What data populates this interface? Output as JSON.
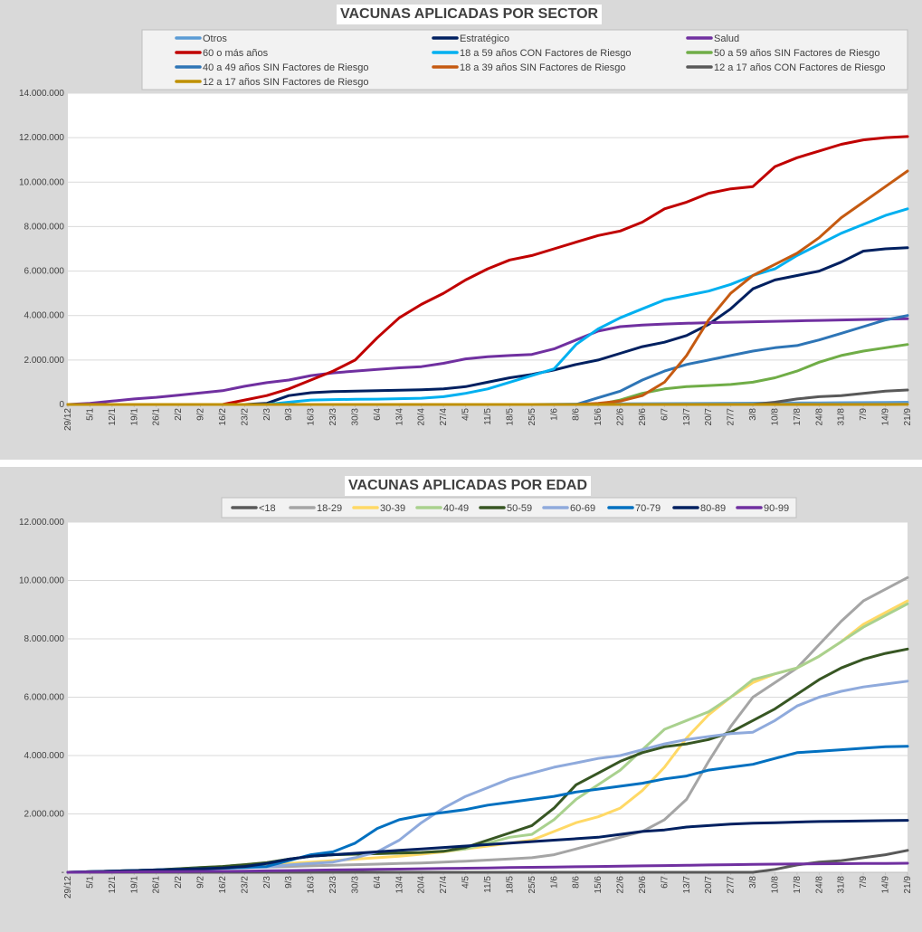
{
  "chart_data": [
    {
      "type": "line",
      "title": "VACUNAS APLICADAS POR SECTOR",
      "ylim": [
        0,
        14000000
      ],
      "y_ticks": [
        0,
        2000000,
        4000000,
        6000000,
        8000000,
        10000000,
        12000000,
        14000000
      ],
      "y_tick_labels": [
        "0",
        "2.000.000",
        "4.000.000",
        "6.000.000",
        "8.000.000",
        "10.000.000",
        "12.000.000",
        "14.000.000"
      ],
      "x_tick_labels": [
        "29/12",
        "5/1",
        "12/1",
        "19/1",
        "26/1",
        "2/2",
        "9/2",
        "16/2",
        "23/2",
        "2/3",
        "9/3",
        "16/3",
        "23/3",
        "30/3",
        "6/4",
        "13/4",
        "20/4",
        "27/4",
        "4/5",
        "11/5",
        "18/5",
        "25/5",
        "1/6",
        "8/6",
        "15/6",
        "22/6",
        "29/6",
        "6/7",
        "13/7",
        "20/7",
        "27/7",
        "3/8",
        "10/8",
        "17/8",
        "24/8",
        "31/8",
        "7/9",
        "14/9",
        "21/9"
      ],
      "legend_position": "top",
      "series": [
        {
          "name": "Otros",
          "color": "#5b9bd5",
          "values": [
            0,
            0,
            0,
            0,
            0,
            0,
            0,
            0,
            0,
            0,
            0,
            0,
            0,
            0,
            0,
            0,
            0,
            0,
            0,
            0,
            0,
            0,
            10000,
            20000,
            25000,
            30000,
            35000,
            40000,
            45000,
            50000,
            55000,
            60000,
            65000,
            70000,
            75000,
            80000,
            85000,
            90000,
            100000
          ]
        },
        {
          "name": "Estratégico",
          "color": "#002060",
          "values": [
            0,
            0,
            0,
            0,
            0,
            0,
            0,
            0,
            0,
            50000,
            400000,
            530000,
            580000,
            600000,
            620000,
            640000,
            660000,
            700000,
            800000,
            1000000,
            1200000,
            1350000,
            1550000,
            1800000,
            2000000,
            2300000,
            2600000,
            2800000,
            3100000,
            3600000,
            4300000,
            5200000,
            5600000,
            5800000,
            6000000,
            6400000,
            6900000,
            7000000,
            7050000
          ]
        },
        {
          "name": "Salud",
          "color": "#7030a0",
          "values": [
            0,
            50000,
            150000,
            250000,
            320000,
            420000,
            520000,
            620000,
            820000,
            980000,
            1100000,
            1300000,
            1420000,
            1500000,
            1580000,
            1650000,
            1700000,
            1850000,
            2050000,
            2150000,
            2200000,
            2250000,
            2500000,
            2900000,
            3300000,
            3500000,
            3570000,
            3620000,
            3650000,
            3680000,
            3700000,
            3720000,
            3740000,
            3760000,
            3780000,
            3800000,
            3820000,
            3840000,
            3860000
          ]
        },
        {
          "name": "60 o más años",
          "color": "#c00000",
          "values": [
            0,
            0,
            0,
            0,
            0,
            0,
            0,
            0,
            200000,
            400000,
            700000,
            1100000,
            1500000,
            2000000,
            3000000,
            3900000,
            4500000,
            5000000,
            5600000,
            6100000,
            6500000,
            6700000,
            7000000,
            7300000,
            7600000,
            7800000,
            8200000,
            8800000,
            9100000,
            9500000,
            9700000,
            9800000,
            10700000,
            11100000,
            11400000,
            11700000,
            11900000,
            12000000,
            12050000
          ]
        },
        {
          "name": "18 a 59 años CON Factores de Riesgo",
          "color": "#00b0f0",
          "values": [
            0,
            0,
            0,
            0,
            0,
            0,
            0,
            0,
            0,
            0,
            100000,
            200000,
            220000,
            230000,
            240000,
            260000,
            280000,
            350000,
            500000,
            700000,
            1000000,
            1300000,
            1600000,
            2700000,
            3400000,
            3900000,
            4300000,
            4700000,
            4900000,
            5100000,
            5400000,
            5800000,
            6100000,
            6700000,
            7200000,
            7700000,
            8100000,
            8500000,
            8800000
          ]
        },
        {
          "name": "50 a 59 años SIN Factores de Riesgo",
          "color": "#70ad47",
          "values": [
            0,
            0,
            0,
            0,
            0,
            0,
            0,
            0,
            0,
            0,
            0,
            0,
            0,
            0,
            0,
            0,
            0,
            0,
            0,
            0,
            0,
            0,
            0,
            0,
            0,
            200000,
            500000,
            700000,
            800000,
            850000,
            900000,
            1000000,
            1200000,
            1500000,
            1900000,
            2200000,
            2400000,
            2550000,
            2700000
          ]
        },
        {
          "name": "40 a 49 años SIN Factores de Riesgo",
          "color": "#2e75b6",
          "values": [
            0,
            0,
            0,
            0,
            0,
            0,
            0,
            0,
            0,
            0,
            0,
            0,
            0,
            0,
            0,
            0,
            0,
            0,
            0,
            0,
            0,
            0,
            0,
            0,
            300000,
            600000,
            1100000,
            1500000,
            1800000,
            2000000,
            2200000,
            2400000,
            2550000,
            2650000,
            2900000,
            3200000,
            3500000,
            3800000,
            4000000
          ]
        },
        {
          "name": "18 a 39 años SIN Factores de Riesgo",
          "color": "#c55a11",
          "values": [
            0,
            0,
            0,
            0,
            0,
            0,
            0,
            0,
            0,
            0,
            0,
            0,
            0,
            0,
            0,
            0,
            0,
            0,
            0,
            0,
            0,
            0,
            0,
            0,
            50000,
            150000,
            400000,
            1000000,
            2200000,
            3800000,
            5000000,
            5800000,
            6300000,
            6800000,
            7500000,
            8400000,
            9100000,
            9800000,
            10500000
          ]
        },
        {
          "name": "12 a 17 años CON Factores de Riesgo",
          "color": "#595959",
          "values": [
            0,
            0,
            0,
            0,
            0,
            0,
            0,
            0,
            0,
            0,
            0,
            0,
            0,
            0,
            0,
            0,
            0,
            0,
            0,
            0,
            0,
            0,
            0,
            0,
            0,
            0,
            0,
            0,
            0,
            0,
            0,
            0,
            100000,
            250000,
            350000,
            400000,
            500000,
            600000,
            650000
          ]
        },
        {
          "name": "12 a 17 años SIN Factores de Riesgo",
          "color": "#bf9000",
          "values": [
            0,
            0,
            0,
            0,
            0,
            0,
            0,
            0,
            0,
            0,
            0,
            0,
            0,
            0,
            0,
            0,
            0,
            0,
            0,
            0,
            0,
            0,
            0,
            0,
            0,
            0,
            0,
            0,
            0,
            0,
            0,
            0,
            0,
            0,
            0,
            0,
            0,
            0,
            5000
          ]
        }
      ]
    },
    {
      "type": "line",
      "title": "VACUNAS APLICADAS POR EDAD",
      "ylim": [
        0,
        12000000
      ],
      "y_ticks": [
        0,
        2000000,
        4000000,
        6000000,
        8000000,
        10000000,
        12000000
      ],
      "y_tick_labels": [
        "-",
        "2.000.000",
        "4.000.000",
        "6.000.000",
        "8.000.000",
        "10.000.000",
        "12.000.000"
      ],
      "x_tick_labels": [
        "29/12",
        "5/1",
        "12/1",
        "19/1",
        "26/1",
        "2/2",
        "9/2",
        "16/2",
        "23/2",
        "2/3",
        "9/3",
        "16/3",
        "23/3",
        "30/3",
        "6/4",
        "13/4",
        "20/4",
        "27/4",
        "4/5",
        "11/5",
        "18/5",
        "25/5",
        "1/6",
        "8/6",
        "15/6",
        "22/6",
        "29/6",
        "6/7",
        "13/7",
        "20/7",
        "27/7",
        "3/8",
        "10/8",
        "17/8",
        "24/8",
        "31/8",
        "7/9",
        "14/9",
        "21/9"
      ],
      "legend_position": "top",
      "series": [
        {
          "name": "<18",
          "color": "#595959",
          "values": [
            0,
            0,
            0,
            0,
            0,
            0,
            0,
            0,
            0,
            0,
            0,
            0,
            0,
            0,
            0,
            0,
            0,
            0,
            0,
            0,
            0,
            0,
            0,
            0,
            0,
            0,
            0,
            0,
            0,
            0,
            0,
            0,
            100000,
            250000,
            350000,
            400000,
            500000,
            600000,
            750000
          ]
        },
        {
          "name": "18-29",
          "color": "#a5a5a5",
          "values": [
            0,
            20000,
            40000,
            60000,
            80000,
            100000,
            120000,
            140000,
            160000,
            180000,
            200000,
            220000,
            240000,
            260000,
            280000,
            300000,
            320000,
            350000,
            380000,
            420000,
            460000,
            500000,
            600000,
            800000,
            1000000,
            1200000,
            1400000,
            1800000,
            2500000,
            3800000,
            5000000,
            6000000,
            6500000,
            7000000,
            7800000,
            8600000,
            9300000,
            9700000,
            10100000
          ]
        },
        {
          "name": "30-39",
          "color": "#ffd966",
          "values": [
            0,
            20000,
            40000,
            60000,
            80000,
            100000,
            120000,
            160000,
            200000,
            250000,
            300000,
            350000,
            400000,
            450000,
            500000,
            550000,
            620000,
            700000,
            800000,
            900000,
            1000000,
            1100000,
            1400000,
            1700000,
            1900000,
            2200000,
            2800000,
            3600000,
            4600000,
            5400000,
            6000000,
            6500000,
            6800000,
            7000000,
            7400000,
            7900000,
            8500000,
            8900000,
            9300000
          ]
        },
        {
          "name": "40-49",
          "color": "#a9d18e",
          "values": [
            0,
            20000,
            40000,
            60000,
            80000,
            120000,
            160000,
            200000,
            260000,
            330000,
            450000,
            550000,
            600000,
            620000,
            640000,
            660000,
            680000,
            720000,
            800000,
            1000000,
            1200000,
            1300000,
            1800000,
            2500000,
            3000000,
            3500000,
            4200000,
            4900000,
            5200000,
            5500000,
            6000000,
            6600000,
            6800000,
            7000000,
            7400000,
            7900000,
            8400000,
            8800000,
            9200000
          ]
        },
        {
          "name": "50-59",
          "color": "#375623",
          "values": [
            0,
            20000,
            40000,
            60000,
            80000,
            120000,
            160000,
            200000,
            260000,
            330000,
            450000,
            550000,
            600000,
            620000,
            640000,
            660000,
            680000,
            720000,
            850000,
            1100000,
            1350000,
            1600000,
            2200000,
            3000000,
            3400000,
            3800000,
            4100000,
            4300000,
            4400000,
            4550000,
            4800000,
            5200000,
            5600000,
            6100000,
            6600000,
            7000000,
            7300000,
            7500000,
            7650000
          ]
        },
        {
          "name": "60-69",
          "color": "#8faadc",
          "values": [
            0,
            20000,
            40000,
            60000,
            80000,
            100000,
            120000,
            140000,
            160000,
            180000,
            250000,
            300000,
            350000,
            500000,
            700000,
            1100000,
            1700000,
            2200000,
            2600000,
            2900000,
            3200000,
            3400000,
            3600000,
            3750000,
            3900000,
            4000000,
            4200000,
            4400000,
            4550000,
            4650000,
            4750000,
            4800000,
            5200000,
            5700000,
            6000000,
            6200000,
            6350000,
            6450000,
            6550000
          ]
        },
        {
          "name": "70-79",
          "color": "#0070c0",
          "values": [
            0,
            20000,
            40000,
            60000,
            80000,
            100000,
            120000,
            140000,
            160000,
            200000,
            400000,
            600000,
            700000,
            1000000,
            1500000,
            1800000,
            1950000,
            2050000,
            2150000,
            2300000,
            2400000,
            2500000,
            2600000,
            2750000,
            2850000,
            2950000,
            3050000,
            3200000,
            3300000,
            3500000,
            3600000,
            3700000,
            3900000,
            4100000,
            4150000,
            4200000,
            4250000,
            4300000,
            4320000
          ]
        },
        {
          "name": "80-89",
          "color": "#002060",
          "values": [
            0,
            20000,
            40000,
            60000,
            80000,
            100000,
            120000,
            150000,
            200000,
            300000,
            450000,
            550000,
            600000,
            650000,
            700000,
            750000,
            800000,
            850000,
            900000,
            950000,
            1000000,
            1050000,
            1100000,
            1150000,
            1200000,
            1300000,
            1400000,
            1450000,
            1550000,
            1600000,
            1650000,
            1680000,
            1700000,
            1720000,
            1740000,
            1750000,
            1760000,
            1770000,
            1780000
          ]
        },
        {
          "name": "90-99",
          "color": "#7030a0",
          "values": [
            0,
            5000,
            10000,
            15000,
            20000,
            25000,
            30000,
            35000,
            40000,
            50000,
            60000,
            70000,
            80000,
            90000,
            100000,
            110000,
            120000,
            130000,
            140000,
            150000,
            160000,
            170000,
            180000,
            190000,
            200000,
            210000,
            220000,
            230000,
            240000,
            250000,
            260000,
            270000,
            280000,
            285000,
            290000,
            295000,
            300000,
            305000,
            310000
          ]
        }
      ]
    }
  ]
}
